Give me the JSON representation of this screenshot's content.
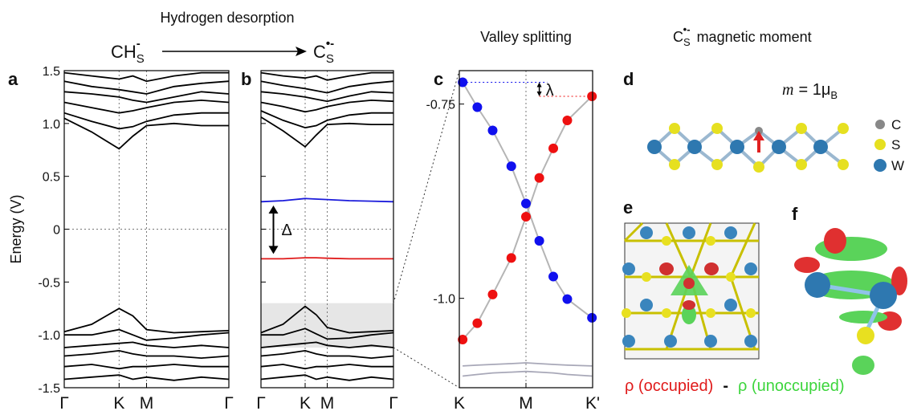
{
  "figure": {
    "process": "Hydrogen desorption",
    "initial": {
      "base": "CH",
      "sub": "S",
      "sup": "-"
    },
    "final": {
      "base": "C",
      "sub": "S",
      "sup": "•-"
    },
    "valley_title": "Valley splitting",
    "moment_title": {
      "base": "C",
      "sub": "S",
      "sup": "•-",
      "rest": "magnetic moment"
    },
    "panel_labels": [
      "a",
      "b",
      "c",
      "d",
      "e",
      "f"
    ],
    "moment": {
      "symbol": "m",
      "eq": "= 1μ",
      "sub": "B"
    },
    "legend": [
      "C",
      "S",
      "W"
    ],
    "density": {
      "occupied": "ρ (occupied)",
      "minus": "-",
      "unoccupied": "ρ (unoccupied)"
    }
  },
  "chart_data": [
    {
      "type": "line",
      "ylabel": "Energy (V)",
      "x": [
        0,
        0.5,
        1,
        1.25,
        1.5,
        2,
        2.5,
        3
      ],
      "xlim": [
        0,
        3
      ],
      "xticks": [
        {
          "value": 0,
          "label": "Γ"
        },
        {
          "value": 1,
          "label": "K"
        },
        {
          "value": 1.5,
          "label": "M"
        },
        {
          "value": 3,
          "label": "Γ"
        }
      ],
      "ylim": [
        -1.5,
        1.5
      ],
      "yticks": [
        -1.5,
        {
          "value": -1,
          "label": "-1.0"
        },
        -0.5,
        0,
        0.5,
        {
          "value": 1,
          "label": "1.0"
        },
        1.5
      ],
      "grid": true,
      "zero_line": true,
      "series": [
        {
          "color": "#000",
          "values": [
            1.05,
            0.92,
            0.76,
            0.88,
            0.98,
            1.0,
            0.98,
            0.98
          ]
        },
        {
          "color": "#000",
          "values": [
            1.1,
            1.02,
            0.95,
            0.97,
            1.02,
            1.08,
            1.1,
            1.1
          ]
        },
        {
          "color": "#000",
          "values": [
            1.2,
            1.15,
            1.1,
            1.12,
            1.15,
            1.2,
            1.22,
            1.2
          ]
        },
        {
          "color": "#000",
          "values": [
            1.3,
            1.28,
            1.25,
            1.22,
            1.2,
            1.25,
            1.3,
            1.28
          ]
        },
        {
          "color": "#000",
          "values": [
            1.4,
            1.35,
            1.32,
            1.3,
            1.28,
            1.35,
            1.38,
            1.4
          ]
        },
        {
          "color": "#000",
          "values": [
            1.48,
            1.45,
            1.42,
            1.45,
            1.4,
            1.45,
            1.48,
            1.48
          ]
        },
        {
          "color": "#000",
          "values": [
            -0.97,
            -0.9,
            -0.75,
            -0.82,
            -0.95,
            -0.98,
            -0.97,
            -0.96
          ]
        },
        {
          "color": "#000",
          "values": [
            -1.0,
            -1.0,
            -0.95,
            -1.0,
            -1.05,
            -1.03,
            -1.0,
            -0.98
          ]
        },
        {
          "color": "#000",
          "values": [
            -1.12,
            -1.1,
            -1.08,
            -1.07,
            -1.1,
            -1.12,
            -1.1,
            -1.12
          ]
        },
        {
          "color": "#000",
          "values": [
            -1.2,
            -1.18,
            -1.15,
            -1.18,
            -1.2,
            -1.2,
            -1.22,
            -1.2
          ]
        },
        {
          "color": "#000",
          "values": [
            -1.3,
            -1.28,
            -1.32,
            -1.3,
            -1.3,
            -1.28,
            -1.3,
            -1.3
          ]
        },
        {
          "color": "#000",
          "values": [
            -1.42,
            -1.4,
            -1.38,
            -1.42,
            -1.4,
            -1.43,
            -1.4,
            -1.42
          ]
        }
      ]
    },
    {
      "type": "line",
      "show_ytick_labels": false,
      "x": [
        0,
        0.5,
        1,
        1.25,
        1.5,
        2,
        2.5,
        3
      ],
      "xlim": [
        0,
        3
      ],
      "xticks": [
        {
          "value": 0,
          "label": "Γ"
        },
        {
          "value": 1,
          "label": "K"
        },
        {
          "value": 1.5,
          "label": "M"
        },
        {
          "value": 3,
          "label": "Γ"
        }
      ],
      "ylim": [
        -1.5,
        1.5
      ],
      "yticks": [
        -1.5,
        -1,
        -0.5,
        0,
        0.5,
        1,
        1.5
      ],
      "grid": true,
      "zero_line": true,
      "highlight_range": [
        -1.12,
        -0.7
      ],
      "annotation": "Δ",
      "series": [
        {
          "color": "#000",
          "values": [
            1.06,
            0.93,
            0.78,
            0.89,
            0.99,
            1.0,
            0.99,
            0.99
          ]
        },
        {
          "color": "#000",
          "values": [
            1.12,
            1.03,
            0.96,
            0.98,
            1.03,
            1.08,
            1.1,
            1.1
          ]
        },
        {
          "color": "#000",
          "values": [
            1.2,
            1.16,
            1.11,
            1.13,
            1.16,
            1.2,
            1.22,
            1.21
          ]
        },
        {
          "color": "#000",
          "values": [
            1.3,
            1.28,
            1.25,
            1.23,
            1.21,
            1.26,
            1.3,
            1.29
          ]
        },
        {
          "color": "#000",
          "values": [
            1.4,
            1.36,
            1.33,
            1.31,
            1.29,
            1.35,
            1.38,
            1.4
          ]
        },
        {
          "color": "#000",
          "values": [
            1.48,
            1.45,
            1.43,
            1.45,
            1.41,
            1.45,
            1.48,
            1.48
          ]
        },
        {
          "color": "#1a1adb",
          "values": [
            0.26,
            0.27,
            0.29,
            0.285,
            0.28,
            0.27,
            0.265,
            0.26
          ]
        },
        {
          "color": "#e01a1a",
          "values": [
            -0.28,
            -0.28,
            -0.27,
            -0.27,
            -0.275,
            -0.28,
            -0.28,
            -0.28
          ]
        },
        {
          "color": "#000",
          "values": [
            -0.98,
            -0.9,
            -0.73,
            -0.81,
            -0.93,
            -0.98,
            -0.97,
            -0.96
          ]
        },
        {
          "color": "#000",
          "values": [
            -1.0,
            -1.0,
            -0.94,
            -0.99,
            -1.04,
            -1.03,
            -1.0,
            -0.98
          ]
        },
        {
          "color": "#000",
          "values": [
            -1.12,
            -1.1,
            -1.08,
            -1.07,
            -1.1,
            -1.12,
            -1.1,
            -1.12
          ]
        },
        {
          "color": "#000",
          "values": [
            -1.2,
            -1.18,
            -1.15,
            -1.18,
            -1.2,
            -1.2,
            -1.22,
            -1.2
          ]
        },
        {
          "color": "#000",
          "values": [
            -1.3,
            -1.28,
            -1.32,
            -1.3,
            -1.3,
            -1.28,
            -1.3,
            -1.3
          ]
        },
        {
          "color": "#000",
          "values": [
            -1.42,
            -1.4,
            -1.38,
            -1.42,
            -1.4,
            -1.43,
            -1.4,
            -1.42
          ]
        }
      ]
    },
    {
      "type": "scatter",
      "x": [
        0.05,
        0.27,
        0.5,
        0.78,
        1.0,
        1.2,
        1.41,
        1.62,
        1.99
      ],
      "xlim": [
        0,
        2
      ],
      "xticks": [
        {
          "value": 0,
          "label": "K"
        },
        {
          "value": 1,
          "label": "M"
        },
        {
          "value": 2,
          "label": "K'"
        }
      ],
      "ylim": [
        -1.115,
        -0.707
      ],
      "yticks": [
        -0.75,
        {
          "value": -1,
          "label": "-1.0"
        }
      ],
      "grid": true,
      "annotation": "λ",
      "series": [
        {
          "color": "#1010ee",
          "line_color": "#b5b5b5",
          "marker": true,
          "values": [
            -0.722,
            -0.754,
            -0.784,
            -0.83,
            -0.878,
            -0.926,
            -0.972,
            -1.001,
            -1.025
          ]
        },
        {
          "color": "#ee1010",
          "line_color": "#b5b5b5",
          "marker": true,
          "values": [
            -1.053,
            -1.032,
            -0.995,
            -0.948,
            -0.895,
            -0.845,
            -0.807,
            -0.771,
            -0.74
          ]
        },
        {
          "color": "#a8a8b8",
          "values": [
            -1.087,
            -1.086,
            -1.085,
            -1.084,
            -1.083,
            -1.084,
            -1.085,
            -1.086,
            -1.087
          ]
        },
        {
          "color": "#a8a8b8",
          "values": [
            -1.1,
            -1.098,
            -1.096,
            -1.095,
            -1.094,
            -1.095,
            -1.096,
            -1.098,
            -1.1
          ]
        }
      ]
    }
  ]
}
